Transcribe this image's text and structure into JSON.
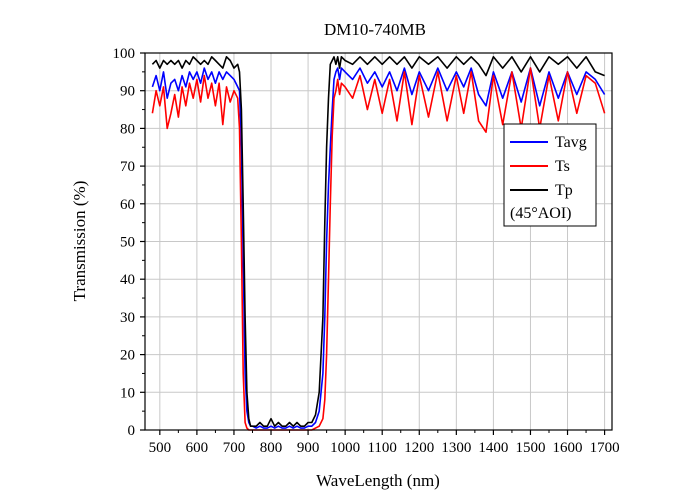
{
  "chart_data": {
    "type": "line",
    "title": "DM10-740MB",
    "xlabel": "WaveLength (nm)",
    "ylabel": "Transmission (%)",
    "xlim": [
      460,
      1720
    ],
    "ylim": [
      0,
      100
    ],
    "xticks": [
      500,
      600,
      700,
      800,
      900,
      1000,
      1100,
      1200,
      1300,
      1400,
      1500,
      1600,
      1700
    ],
    "xtick_labels": [
      "500",
      "600",
      "700",
      "800",
      "900",
      "1000",
      "1100",
      "1200",
      "1300",
      "1400",
      "1500",
      "1600",
      "1700"
    ],
    "yticks": [
      0,
      10,
      20,
      30,
      40,
      50,
      60,
      70,
      80,
      90,
      100
    ],
    "ytick_labels": [
      "0",
      "10",
      "20",
      "30",
      "40",
      "50",
      "60",
      "70",
      "80",
      "90",
      "100"
    ],
    "grid": true,
    "legend_position": "right",
    "legend_note": "(45°AOI)",
    "series": [
      {
        "name": "Tavg",
        "color": "#0000ff",
        "x": [
          480,
          490,
          500,
          510,
          520,
          530,
          540,
          550,
          560,
          570,
          580,
          590,
          600,
          610,
          620,
          630,
          640,
          650,
          660,
          670,
          680,
          690,
          700,
          710,
          715,
          720,
          725,
          730,
          735,
          740,
          745,
          750,
          760,
          770,
          780,
          790,
          800,
          810,
          820,
          830,
          840,
          850,
          860,
          870,
          880,
          890,
          900,
          910,
          920,
          930,
          940,
          945,
          950,
          955,
          960,
          965,
          970,
          975,
          980,
          985,
          990,
          1000,
          1020,
          1040,
          1060,
          1080,
          1100,
          1120,
          1140,
          1160,
          1180,
          1200,
          1225,
          1250,
          1275,
          1300,
          1320,
          1340,
          1360,
          1380,
          1400,
          1425,
          1450,
          1475,
          1500,
          1525,
          1550,
          1575,
          1600,
          1625,
          1650,
          1675,
          1700
        ],
        "y": [
          91,
          94,
          90,
          95,
          88,
          92,
          93,
          90,
          94,
          91,
          95,
          93,
          95,
          92,
          96,
          93,
          95,
          92,
          95,
          93,
          95,
          94,
          93,
          91,
          90,
          75,
          45,
          15,
          5,
          2,
          1,
          1,
          0.5,
          1,
          0.5,
          0.5,
          1,
          0.5,
          1,
          0.5,
          0.5,
          1,
          0.5,
          1,
          0.5,
          0.5,
          1,
          1,
          2,
          5,
          15,
          30,
          50,
          65,
          75,
          85,
          93,
          95,
          96,
          93,
          96,
          95,
          93,
          96,
          92,
          95,
          91,
          95,
          90,
          96,
          89,
          95,
          90,
          96,
          90,
          95,
          91,
          96,
          89,
          86,
          95,
          88,
          95,
          87,
          96,
          86,
          95,
          88,
          95,
          89,
          95,
          93,
          89
        ]
      },
      {
        "name": "Ts",
        "color": "#ff0000",
        "x": [
          480,
          490,
          500,
          510,
          520,
          530,
          540,
          550,
          560,
          570,
          580,
          590,
          600,
          610,
          620,
          630,
          640,
          650,
          660,
          670,
          680,
          690,
          700,
          710,
          715,
          720,
          725,
          730,
          735,
          740,
          745,
          750,
          760,
          770,
          780,
          790,
          800,
          810,
          820,
          830,
          840,
          850,
          860,
          870,
          880,
          890,
          900,
          910,
          920,
          930,
          940,
          945,
          950,
          955,
          960,
          965,
          970,
          975,
          980,
          985,
          990,
          1000,
          1020,
          1040,
          1060,
          1080,
          1100,
          1120,
          1140,
          1160,
          1180,
          1200,
          1225,
          1250,
          1275,
          1300,
          1320,
          1340,
          1360,
          1380,
          1400,
          1425,
          1450,
          1475,
          1500,
          1525,
          1550,
          1575,
          1600,
          1625,
          1650,
          1675,
          1700
        ],
        "y": [
          84,
          90,
          86,
          91,
          80,
          84,
          89,
          83,
          91,
          86,
          92,
          88,
          93,
          87,
          94,
          88,
          92,
          86,
          92,
          81,
          91,
          87,
          90,
          88,
          80,
          50,
          15,
          2,
          0.5,
          0,
          0,
          0,
          0,
          0,
          0,
          0,
          0,
          0,
          0,
          0,
          0,
          0,
          0,
          0,
          0,
          0,
          0,
          0,
          0.5,
          1,
          3,
          8,
          20,
          40,
          60,
          78,
          88,
          90,
          93,
          89,
          92,
          91,
          88,
          94,
          85,
          93,
          84,
          93,
          82,
          95,
          81,
          94,
          83,
          95,
          82,
          94,
          84,
          95,
          82,
          79,
          94,
          81,
          95,
          80,
          96,
          80,
          94,
          82,
          95,
          84,
          94,
          92,
          84
        ]
      },
      {
        "name": "Tp",
        "color": "#000000",
        "x": [
          480,
          490,
          500,
          510,
          520,
          530,
          540,
          550,
          560,
          570,
          580,
          590,
          600,
          610,
          620,
          630,
          640,
          650,
          660,
          670,
          680,
          690,
          700,
          710,
          715,
          720,
          725,
          730,
          735,
          740,
          745,
          750,
          760,
          770,
          780,
          790,
          800,
          810,
          820,
          830,
          840,
          850,
          860,
          870,
          880,
          890,
          900,
          910,
          920,
          930,
          940,
          945,
          950,
          955,
          960,
          965,
          970,
          975,
          980,
          985,
          990,
          1000,
          1020,
          1040,
          1060,
          1080,
          1100,
          1120,
          1140,
          1160,
          1180,
          1200,
          1225,
          1250,
          1275,
          1300,
          1320,
          1340,
          1360,
          1380,
          1400,
          1425,
          1450,
          1475,
          1500,
          1525,
          1550,
          1575,
          1600,
          1625,
          1650,
          1675,
          1700
        ],
        "y": [
          97,
          98,
          96,
          98,
          97,
          98,
          97,
          98,
          96,
          98,
          97,
          99,
          98,
          97,
          98,
          97,
          99,
          98,
          97,
          96,
          99,
          98,
          96,
          97,
          95,
          85,
          60,
          30,
          10,
          3,
          1,
          1,
          1,
          2,
          1,
          1,
          3,
          1,
          2,
          1,
          1,
          2,
          1,
          2,
          1,
          1,
          2,
          2,
          4,
          10,
          30,
          55,
          75,
          88,
          97,
          98,
          99,
          97,
          99,
          96,
          99,
          98,
          97,
          99,
          97,
          99,
          97,
          99,
          97,
          99,
          96,
          99,
          97,
          99,
          96,
          99,
          97,
          99,
          97,
          94,
          99,
          96,
          99,
          95,
          99,
          95,
          99,
          97,
          99,
          96,
          99,
          95,
          94
        ]
      }
    ]
  }
}
